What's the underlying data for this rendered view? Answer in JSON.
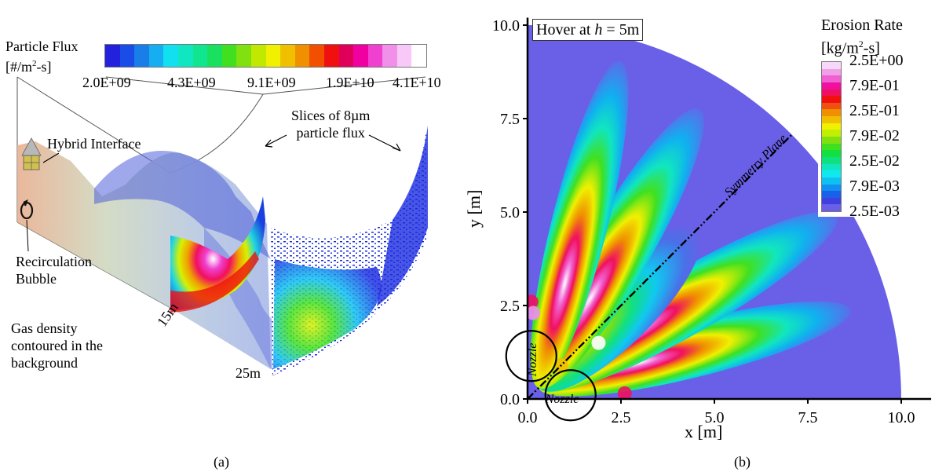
{
  "panel_a": {
    "caption": "(a)",
    "colorbar": {
      "title_line1": "Particle Flux",
      "title_line2_prefix": "[#/m",
      "title_line2_sup": "2",
      "title_line2_suffix": "-s]",
      "ticks": [
        "2.0E+09",
        "4.3E+09",
        "9.1E+09",
        "1.9E+10",
        "4.1E+10"
      ],
      "colors": [
        "#2222dd",
        "#1a4ce8",
        "#1a7ee8",
        "#16aef0",
        "#10e0f0",
        "#10e6c0",
        "#10e690",
        "#1ae060",
        "#40e020",
        "#80e010",
        "#c0e800",
        "#f0f000",
        "#f0c000",
        "#f09000",
        "#f05000",
        "#f01010",
        "#e0005a",
        "#f000a0",
        "#f040d0",
        "#f090e8",
        "#f8c8f8",
        "#ffffff"
      ]
    },
    "labels": {
      "hybrid_interface": "Hybrid Interface",
      "recirculation_line1": "Recirculation",
      "recirculation_line2": "Bubble",
      "gas_line1": "Gas density",
      "gas_line2": "contoured in the",
      "gas_line3": "background",
      "slices_line1": "Slices of 8µm",
      "slices_line2": "particle flux",
      "dist_15": "15m",
      "dist_25": "25m"
    }
  },
  "panel_b": {
    "caption": "(b)",
    "hover_label_prefix": "Hover at ",
    "hover_label_var": "h",
    "hover_label_suffix": " = 5m",
    "symmetry_plane": "Symmetry Plane",
    "nozzle_label": "Nozzle",
    "colorbar": {
      "title_line1": "Erosion Rate",
      "title_line2_prefix": "[kg/m",
      "title_line2_sup": "2",
      "title_line2_suffix": "-s]",
      "ticks": [
        "2.5E+00",
        "7.9E-01",
        "2.5E-01",
        "7.9E-02",
        "2.5E-02",
        "7.9E-03",
        "2.5E-03"
      ],
      "colors": [
        "#f8d8f8",
        "#f0a0e8",
        "#f060d0",
        "#f010a0",
        "#f01060",
        "#f01010",
        "#f05010",
        "#f09000",
        "#f0c000",
        "#f0f000",
        "#c0f000",
        "#80e010",
        "#40e020",
        "#10e040",
        "#10e080",
        "#10e6c0",
        "#10e8f0",
        "#10c0f0",
        "#1090f0",
        "#1a60e8",
        "#4040e0",
        "#6a60e8"
      ]
    },
    "chart_data": {
      "type": "heatmap",
      "title": "",
      "xlabel": "x [m]",
      "ylabel": "y [m]",
      "xlim": [
        0.0,
        10.0
      ],
      "ylim": [
        0.0,
        10.0
      ],
      "x_ticks": [
        "0.0",
        "2.5",
        "5.0",
        "7.5",
        "10.0"
      ],
      "y_ticks": [
        "0.0",
        "2.5",
        "5.0",
        "7.5",
        "10.0"
      ],
      "x_tick_values": [
        0,
        2.5,
        5,
        7.5,
        10
      ],
      "y_tick_values": [
        0,
        2.5,
        5,
        7.5,
        10
      ],
      "domain_radius": 10.0,
      "symmetry_plane_angle_deg": 45,
      "nozzle_positions": [
        {
          "x": 0.1,
          "y": 1.15
        },
        {
          "x": 1.15,
          "y": 0.1
        }
      ],
      "petal_angles_deg": [
        14,
        30,
        45,
        60,
        76
      ],
      "background_color": "#6a60e8"
    }
  }
}
